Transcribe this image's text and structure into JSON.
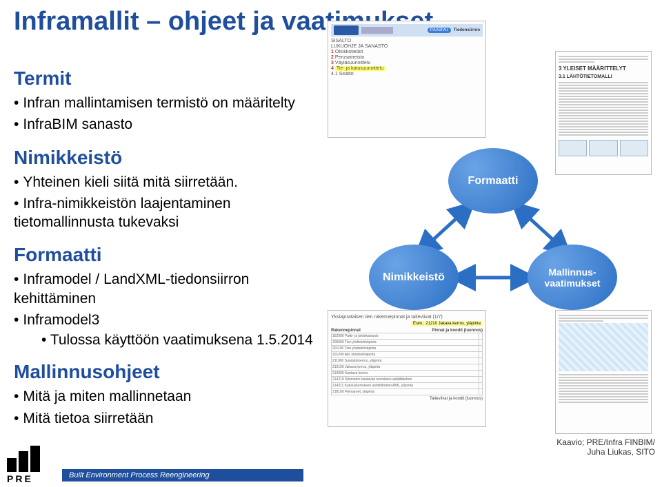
{
  "title": "Inframallit – ohjeet ja vaatimukset",
  "sections": {
    "termit": {
      "head": "Termit",
      "b1": "Infran mallintamisen termistö on määritelty",
      "b2": "InfraBIM sanasto"
    },
    "nimik": {
      "head": "Nimikkeistö",
      "b1": "Yhteinen kieli siitä mitä siirretään.",
      "b2": "Infra-nimikkeistön laajentaminen tietomallinnusta tukevaksi"
    },
    "formaatti": {
      "head": "Formaatti",
      "b1": "Inframodel / LandXML-tiedonsiirron kehittäminen",
      "b2": "Inframodel3",
      "sub": "Tulossa käyttöön vaatimuksena 1.5.2014"
    },
    "ohjeet": {
      "head": "Mallinnusohjeet",
      "b1": "Mitä ja miten mallinnetaan",
      "b2": "Mitä tietoa siirretään"
    }
  },
  "diagram": {
    "formaatti": "Formaatti",
    "nimikkeisto": "Nimikkeistö",
    "vaatimukset": "Mallinnus-\nvaatimukset",
    "arrow_color": "#2b6fc4"
  },
  "doc1": {
    "band_right": "Tiedonsiirron",
    "band_pill": "PÄÄSIVU",
    "rows": [
      {
        "n": "",
        "t": "SISÄLTÖ"
      },
      {
        "n": "",
        "t": "LUKUOHJE JA SANASTO"
      },
      {
        "n": "1",
        "t": "Otsikkotiedot"
      },
      {
        "n": "2",
        "t": "Perusaineisto"
      },
      {
        "n": "3",
        "t": "Väyläsuunnittelu"
      },
      {
        "n": "4",
        "t": "Tie- ja katusuunnittelu",
        "hi": true
      },
      {
        "n": "",
        "t": "4.1 Sisältö"
      }
    ]
  },
  "doc2": {
    "h1": "3 YLEISET MÄÄRITTELYT",
    "h2": "3.1 LÄHTÖTIETOMALLI"
  },
  "doc3": {
    "hd": "Yksiajorataisen tien rakennepinnat ja taiteviivat (1/7)",
    "esim": "Esim.: 21210 Jakava kerros, yläpinta",
    "col1": "Rakennepinnat",
    "col2": "Pinnat ja koodit (luonnos)",
    "rows": [
      "162000 Putki- ja johtokaivanto",
      "200000 Tien yhdistelmäpintа",
      "201100 Tien yhdistelmäpintа",
      "201200 Alin yhdistelmäpintа",
      "211000 Suodatinkerros, yläpinta",
      "212100 Jakava kerros, yläpinta",
      "213000 Kantava kerros",
      "214210 Sitomaton kantavan kerroksen аsfalttibetoni",
      "214211 Kulutuskerroksen asfalttibetoni ABK, yläpinta",
      "218100 Pientareet, yläpinta"
    ],
    "foot": "Taiteviivat ja koodit (luonnos)"
  },
  "credit": {
    "l1": "Kaavio;  PRE/Infra FINBIM/",
    "l2": "Juha Liukas, SITO"
  },
  "footer": {
    "text": "Built Environment Process Reengineering",
    "logo": "PRE"
  },
  "colors": {
    "brand": "#1f4e9c",
    "circle_light": "#6aa3e6",
    "circle_dark": "#2b6fc4"
  }
}
